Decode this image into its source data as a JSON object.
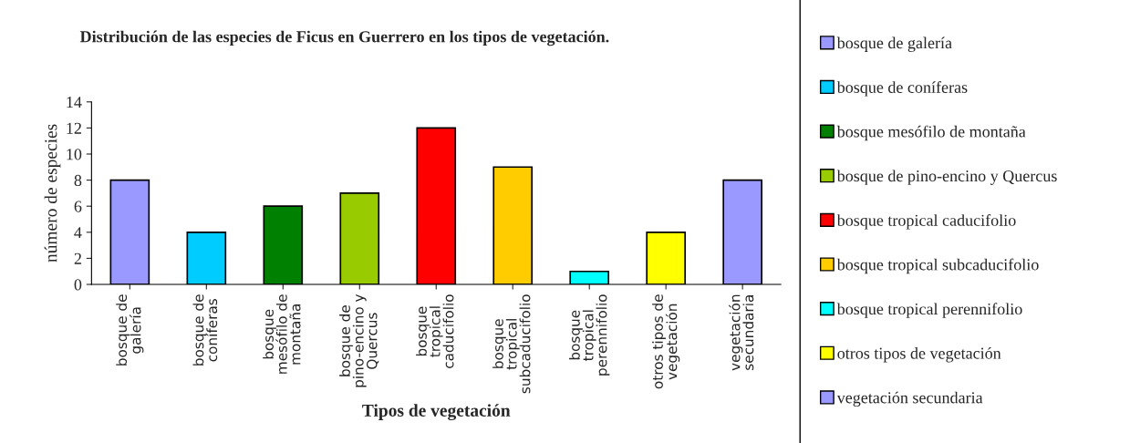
{
  "chart_data": {
    "type": "bar",
    "title": "Distribución de las especies de Ficus en Guerrero en los tipos de vegetación.",
    "xlabel": "Tipos de vegetación",
    "ylabel": "número de especies",
    "categories": [
      "bosque de\ngalería",
      "bosque de\nconíferas",
      "bosque\nmesófilo de\nmontaña",
      "bosque de\npino-encino y\nQuercus",
      "bosque\ntropical\ncaducifolio",
      "bosque\ntropical\nsubcaducifolio",
      "bosque\ntropical\nperennifolio",
      "otros tipos de\nvegetación",
      "vegetación\nsecundaria"
    ],
    "series": [
      {
        "name": "bosque de galería",
        "color": "#9999ff",
        "values": [
          8,
          null,
          null,
          null,
          null,
          null,
          null,
          null,
          null
        ]
      },
      {
        "name": "bosque de coníferas",
        "color": "#00ccff",
        "values": [
          null,
          4,
          null,
          null,
          null,
          null,
          null,
          null,
          null
        ]
      },
      {
        "name": "bosque mesófilo de montaña",
        "color": "#008000",
        "values": [
          null,
          null,
          6,
          null,
          null,
          null,
          null,
          null,
          null
        ]
      },
      {
        "name": "bosque de pino-encino y Quercus",
        "color": "#99cc00",
        "values": [
          null,
          null,
          null,
          7,
          null,
          null,
          null,
          null,
          null
        ]
      },
      {
        "name": "bosque tropical caducifolio",
        "color": "#ff0000",
        "values": [
          null,
          null,
          null,
          null,
          12,
          null,
          null,
          null,
          null
        ]
      },
      {
        "name": "bosque tropical subcaducifolio",
        "color": "#ffcc00",
        "values": [
          null,
          null,
          null,
          null,
          null,
          9,
          null,
          null,
          null
        ]
      },
      {
        "name": "bosque tropical perennifolio",
        "color": "#00ffff",
        "values": [
          null,
          null,
          null,
          null,
          null,
          null,
          1,
          null,
          null
        ]
      },
      {
        "name": "otros tipos de vegetación",
        "color": "#ffff00",
        "values": [
          null,
          null,
          null,
          null,
          null,
          null,
          null,
          4,
          null
        ]
      },
      {
        "name": "vegetación secundaria",
        "color": "#9999ff",
        "values": [
          null,
          null,
          null,
          null,
          null,
          null,
          null,
          null,
          8
        ]
      }
    ],
    "ylim": [
      0,
      14
    ],
    "yticks": [
      0,
      2,
      4,
      6,
      8,
      10,
      12,
      14
    ],
    "grid": false,
    "legend": "right"
  }
}
